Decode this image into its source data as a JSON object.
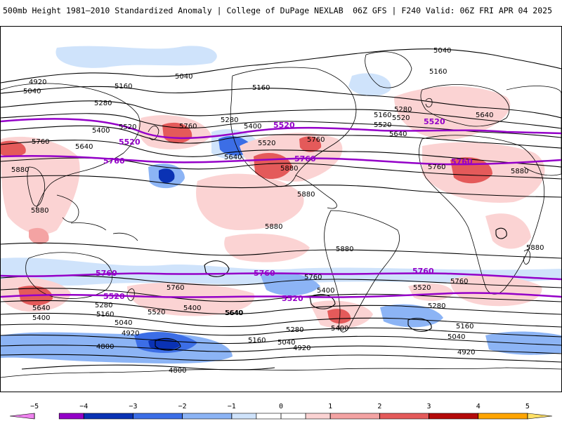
{
  "header": {
    "title": "500mb Height 1981–2010 Standardized Anomaly | College of DuPage NEXLAB",
    "run_info": "06Z GFS | F240 Valid: 06Z FRI APR 04 2025"
  },
  "colors": {
    "purple_contour": "#9400c8",
    "black_contour": "#000000",
    "land_outline": "#000000"
  },
  "colorbar": {
    "ticks": [
      "−5",
      "−4",
      "−3",
      "−2",
      "−1",
      "0",
      "1",
      "2",
      "3",
      "4",
      "5"
    ],
    "bins": [
      {
        "from": -5,
        "to": -4.5,
        "color": "#ee82ee"
      },
      {
        "from": -4.5,
        "to": -4,
        "color": "#9400c8"
      },
      {
        "from": -4,
        "to": -3,
        "color": "#0a32b4"
      },
      {
        "from": -3,
        "to": -2,
        "color": "#3c6ee6"
      },
      {
        "from": -2,
        "to": -1,
        "color": "#8cb4f5"
      },
      {
        "from": -1,
        "to": -0.5,
        "color": "#cfe3fb"
      },
      {
        "from": -0.5,
        "to": 0.5,
        "color": "#ffffff"
      },
      {
        "from": 0.5,
        "to": 1,
        "color": "#fbd3d3"
      },
      {
        "from": 1,
        "to": 2,
        "color": "#f4a3a3"
      },
      {
        "from": 2,
        "to": 3,
        "color": "#e45a5a"
      },
      {
        "from": 3,
        "to": 4,
        "color": "#b40a0a"
      },
      {
        "from": 4,
        "to": 5,
        "color": "#ffa500"
      },
      {
        "from": 5,
        "to": 5.5,
        "color": "#ffe066"
      }
    ]
  },
  "contour_labels": {
    "black": [
      "5040",
      "5040",
      "5040",
      "4920",
      "5160",
      "5160",
      "5160",
      "5280",
      "5280",
      "5400",
      "5400",
      "5520",
      "5520",
      "5280",
      "5520",
      "5640",
      "5640",
      "5640",
      "5760",
      "5760",
      "5760",
      "5880",
      "5880",
      "5880",
      "5880",
      "5880",
      "5880",
      "5880",
      "5760",
      "5760",
      "5640",
      "5640",
      "5520",
      "5520",
      "5400",
      "5400",
      "5280",
      "5280",
      "5160",
      "5160",
      "5040",
      "5040",
      "4920",
      "4920",
      "4800",
      "4800",
      "5400",
      "5640",
      "5760",
      "5760",
      "5880",
      "5280",
      "5400",
      "5160",
      "5040",
      "4920",
      "5160",
      "5520",
      "5640"
    ],
    "purple": [
      "5520",
      "5520",
      "5520",
      "5760",
      "5760",
      "5760",
      "5760",
      "5760",
      "5760",
      "5520",
      "5520"
    ]
  }
}
